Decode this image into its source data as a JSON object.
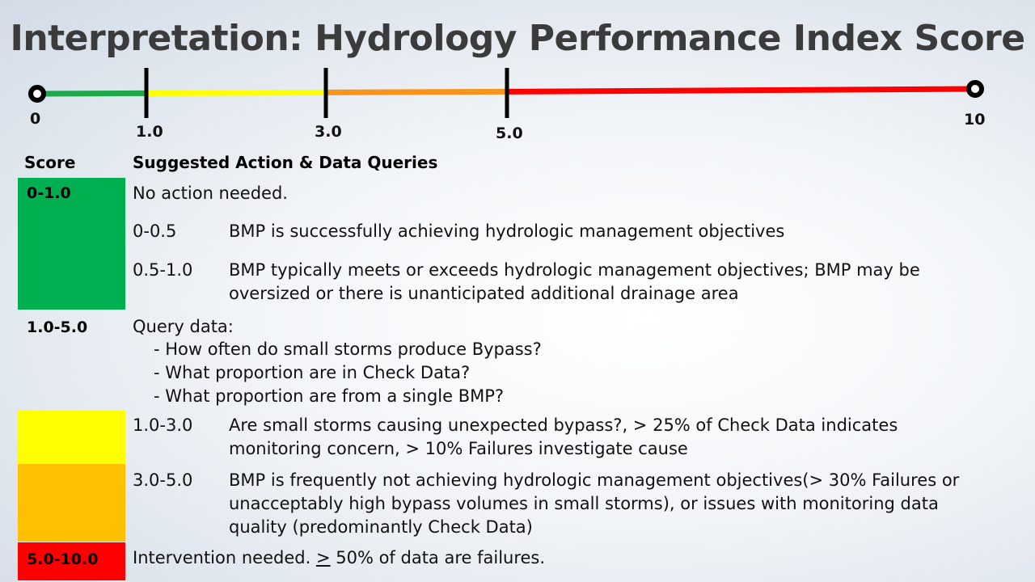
{
  "title": "Interpretation: Hydrology Performance Index Score",
  "scale": {
    "min_label": "0",
    "max_label": "10",
    "ticks": [
      "1.0",
      "3.0",
      "5.0"
    ],
    "segment_colors": [
      "#1fa849",
      "#ffff00",
      "#f7941d",
      "#ff0000"
    ]
  },
  "headers": {
    "score": "Score",
    "action": "Suggested Action & Data Queries"
  },
  "colors": {
    "green": "#00b050",
    "yellow": "#ffff00",
    "orange": "#ffc000",
    "red": "#ff0000"
  },
  "rows": {
    "green": {
      "score": "0-1.0",
      "summary": "No action needed.",
      "sub": [
        {
          "range": "0-0.5",
          "lines": [
            "BMP is successfully achieving hydrologic management objectives"
          ]
        },
        {
          "range": "0.5-1.0",
          "lines": [
            "BMP typically meets or exceeds hydrologic management objectives; BMP may be",
            "oversized or there is unanticipated additional drainage area"
          ]
        }
      ]
    },
    "mid": {
      "score": "1.0-5.0",
      "summary": "Query data:",
      "queries": [
        "- How often do small storms produce Bypass?",
        "- What proportion are in Check Data?",
        "- What proportion are from a single BMP?"
      ]
    },
    "yellow": {
      "range": "1.0-3.0",
      "lines": [
        "Are small storms causing unexpected bypass?, > 25% of Check Data indicates",
        "monitoring concern, > 10% Failures investigate cause"
      ]
    },
    "orange": {
      "range": "3.0-5.0",
      "lines": [
        "BMP is frequently not achieving hydrologic management objectives(> 30% Failures or",
        "unacceptably high bypass volumes in small storms), or issues with monitoring data",
        "quality (predominantly Check Data)"
      ]
    },
    "red": {
      "score": "5.0-10.0",
      "summary_pre": "Intervention needed. ",
      "summary_sym": ">",
      "summary_post": " 50% of data are failures."
    }
  }
}
